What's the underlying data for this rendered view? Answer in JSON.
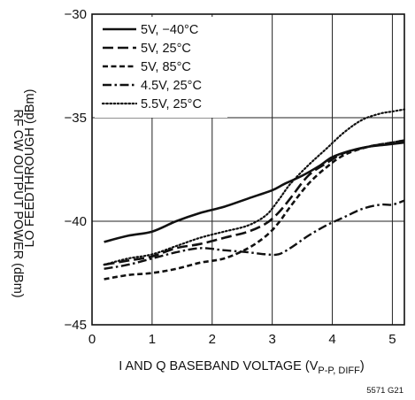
{
  "chart_data": {
    "type": "line",
    "xlabel": "I AND Q BASEBAND VOLTAGE (V",
    "xlabel_sub": "P-P, DIFF",
    "xlabel_close": ")",
    "ylabel_outer": "RF CW OUTPUT POWER (dBm)",
    "ylabel_inner": "LO FEEDTHROUGH (dBm)",
    "figure_id": "5571 G21",
    "xlim": [
      0,
      5.2
    ],
    "ylim": [
      -45,
      -30
    ],
    "xticks": [
      0,
      1,
      2,
      3,
      4,
      5
    ],
    "yticks": [
      -45,
      -40,
      -35,
      -30
    ],
    "xtick_labels": [
      "0",
      "1",
      "2",
      "3",
      "4",
      "5"
    ],
    "ytick_labels": [
      "−45",
      "−40",
      "−35",
      "−30"
    ],
    "grid": true,
    "legend_position": "top-left",
    "series": [
      {
        "name": "5V, −40°C",
        "dash": "solid",
        "points": [
          [
            0.2,
            -41.0
          ],
          [
            0.6,
            -40.7
          ],
          [
            1.0,
            -40.5
          ],
          [
            1.4,
            -40.0
          ],
          [
            1.8,
            -39.6
          ],
          [
            2.2,
            -39.3
          ],
          [
            2.6,
            -38.9
          ],
          [
            3.0,
            -38.5
          ],
          [
            3.2,
            -38.2
          ],
          [
            3.5,
            -37.8
          ],
          [
            3.8,
            -37.3
          ],
          [
            4.0,
            -36.9
          ],
          [
            4.3,
            -36.6
          ],
          [
            4.6,
            -36.4
          ],
          [
            4.9,
            -36.3
          ],
          [
            5.2,
            -36.2
          ]
        ]
      },
      {
        "name": "5V, 25°C",
        "dash": "long-dash",
        "points": [
          [
            0.2,
            -42.1
          ],
          [
            0.6,
            -41.9
          ],
          [
            1.0,
            -41.7
          ],
          [
            1.4,
            -41.3
          ],
          [
            1.8,
            -41.1
          ],
          [
            2.2,
            -40.8
          ],
          [
            2.6,
            -40.5
          ],
          [
            2.9,
            -40.1
          ],
          [
            3.1,
            -39.6
          ],
          [
            3.3,
            -38.9
          ],
          [
            3.6,
            -37.8
          ],
          [
            3.9,
            -37.2
          ],
          [
            4.2,
            -36.7
          ],
          [
            4.6,
            -36.4
          ],
          [
            5.0,
            -36.2
          ],
          [
            5.2,
            -36.1
          ]
        ]
      },
      {
        "name": "5V, 85°C",
        "dash": "short-dash",
        "points": [
          [
            0.2,
            -42.8
          ],
          [
            0.6,
            -42.6
          ],
          [
            1.0,
            -42.5
          ],
          [
            1.4,
            -42.3
          ],
          [
            1.8,
            -42.0
          ],
          [
            2.2,
            -41.8
          ],
          [
            2.6,
            -41.3
          ],
          [
            2.9,
            -40.7
          ],
          [
            3.1,
            -40.1
          ],
          [
            3.3,
            -39.3
          ],
          [
            3.6,
            -38.2
          ],
          [
            3.9,
            -37.4
          ],
          [
            4.2,
            -36.8
          ],
          [
            4.6,
            -36.4
          ],
          [
            5.0,
            -36.2
          ],
          [
            5.2,
            -36.1
          ]
        ]
      },
      {
        "name": "4.5V, 25°C",
        "dash": "dash-dot",
        "points": [
          [
            0.2,
            -42.3
          ],
          [
            0.6,
            -42.1
          ],
          [
            1.0,
            -41.8
          ],
          [
            1.4,
            -41.5
          ],
          [
            1.8,
            -41.3
          ],
          [
            2.2,
            -41.4
          ],
          [
            2.6,
            -41.5
          ],
          [
            2.9,
            -41.6
          ],
          [
            3.1,
            -41.6
          ],
          [
            3.3,
            -41.3
          ],
          [
            3.6,
            -40.7
          ],
          [
            3.9,
            -40.2
          ],
          [
            4.2,
            -39.8
          ],
          [
            4.5,
            -39.4
          ],
          [
            4.8,
            -39.2
          ],
          [
            5.0,
            -39.2
          ],
          [
            5.2,
            -39.0
          ]
        ]
      },
      {
        "name": "5.5V, 25°C",
        "dash": "dotted",
        "points": [
          [
            0.2,
            -42.1
          ],
          [
            0.6,
            -41.8
          ],
          [
            1.0,
            -41.6
          ],
          [
            1.4,
            -41.2
          ],
          [
            1.8,
            -40.8
          ],
          [
            2.2,
            -40.5
          ],
          [
            2.6,
            -40.2
          ],
          [
            2.9,
            -39.7
          ],
          [
            3.1,
            -39.0
          ],
          [
            3.3,
            -38.2
          ],
          [
            3.6,
            -37.3
          ],
          [
            3.9,
            -36.5
          ],
          [
            4.2,
            -35.7
          ],
          [
            4.5,
            -35.1
          ],
          [
            4.8,
            -34.8
          ],
          [
            5.0,
            -34.7
          ],
          [
            5.2,
            -34.6
          ]
        ]
      }
    ]
  }
}
